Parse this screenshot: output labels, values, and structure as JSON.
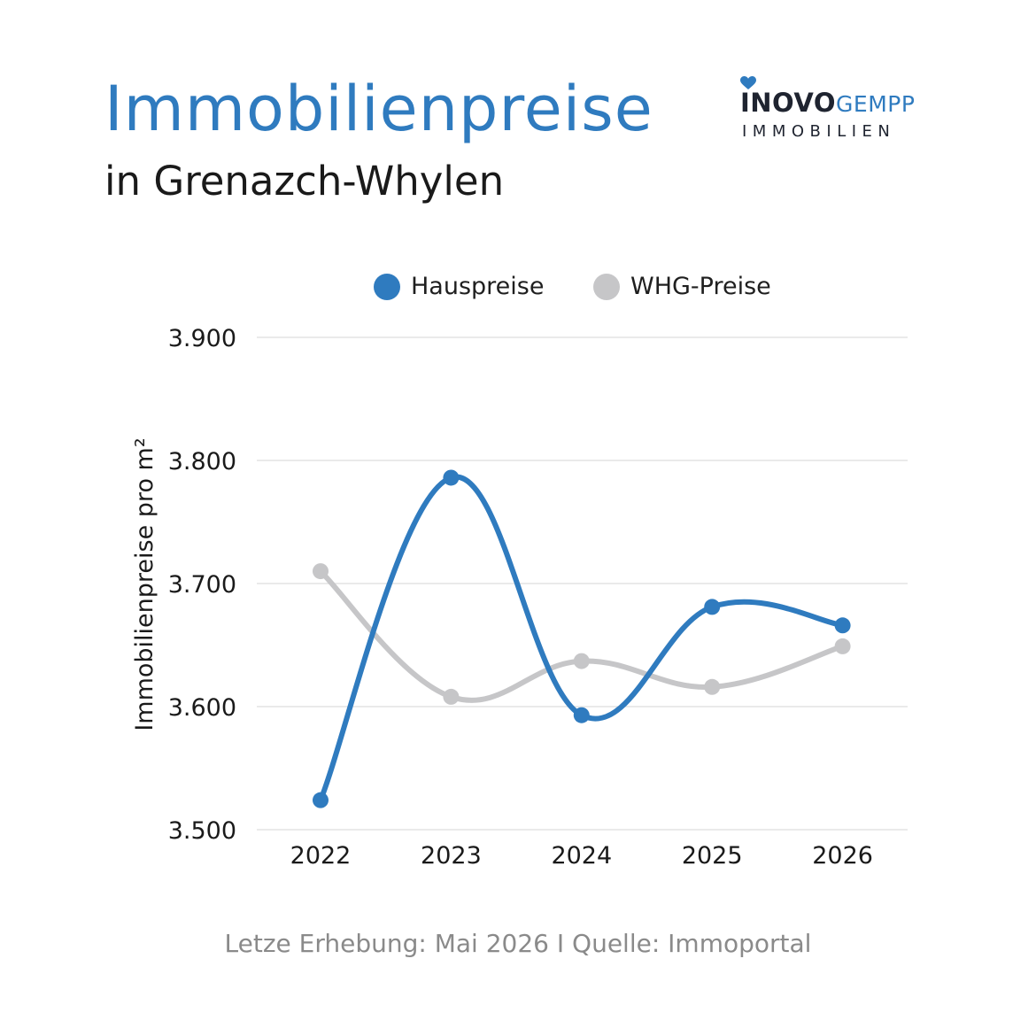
{
  "header": {
    "title": "Immobilienpreise",
    "subtitle": "in Grenazch-Whylen"
  },
  "logo": {
    "brand_bold": "INOVO",
    "brand_light": "GEMPP",
    "brand_sub": "IMMOBILIEN",
    "icon": "heart-icon",
    "colors": {
      "dark": "#1f2430",
      "accent": "#2f7bbf"
    }
  },
  "footer": {
    "text": "Letze Erhebung: Mai 2026 I Quelle: Immoportal"
  },
  "chart_data": {
    "type": "line",
    "title": "Immobilienpreise",
    "subtitle": "in Grenazch-Whylen",
    "xlabel": "",
    "ylabel": "Immobilienpreise pro m²",
    "categories": [
      "2022",
      "2023",
      "2024",
      "2025",
      "2026"
    ],
    "ylim": [
      3500,
      3900
    ],
    "yticks": [
      3500,
      3600,
      3700,
      3800,
      3900
    ],
    "ytick_labels": [
      "3.500",
      "3.600",
      "3.700",
      "3.800",
      "3.900"
    ],
    "grid": true,
    "smooth": true,
    "legend_position": "top-center",
    "series": [
      {
        "name": "Hauspreise",
        "color": "#2f7bbf",
        "values": [
          3524,
          3786,
          3593,
          3681,
          3666
        ]
      },
      {
        "name": "WHG-Preise",
        "color": "#c6c6c8",
        "values": [
          3710,
          3608,
          3637,
          3616,
          3649
        ]
      }
    ]
  }
}
